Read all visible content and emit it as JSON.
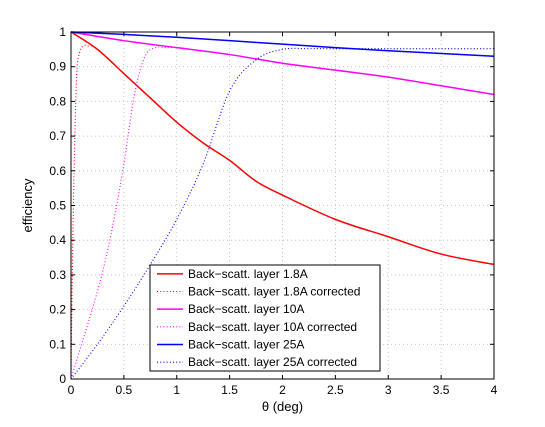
{
  "chart_data": {
    "type": "line",
    "title": "",
    "xlabel": "θ (deg)",
    "ylabel": "efficiency",
    "xlim": [
      0,
      4
    ],
    "ylim": [
      0,
      1
    ],
    "xticks": [
      0,
      0.5,
      1,
      1.5,
      2,
      2.5,
      3,
      3.5,
      4
    ],
    "xtick_labels": [
      "0",
      "0.5",
      "1",
      "1.5",
      "2",
      "2.5",
      "3",
      "3.5",
      "4"
    ],
    "yticks": [
      0,
      0.1,
      0.2,
      0.3,
      0.4,
      0.5,
      0.6,
      0.7,
      0.8,
      0.9,
      1
    ],
    "ytick_labels": [
      "0",
      "0.1",
      "0.2",
      "0.3",
      "0.4",
      "0.5",
      "0.6",
      "0.7",
      "0.8",
      "0.9",
      "1"
    ],
    "grid": true,
    "legend_position": "bottom-center",
    "series": [
      {
        "name": "Back−scatt. layer 1.8A",
        "color": "#ff0000",
        "style": "solid",
        "x": [
          0,
          0.25,
          0.5,
          0.75,
          1.0,
          1.25,
          1.5,
          1.75,
          2.0,
          2.5,
          3.0,
          3.5,
          4.0
        ],
        "y": [
          1.0,
          0.95,
          0.88,
          0.81,
          0.74,
          0.68,
          0.63,
          0.57,
          0.53,
          0.46,
          0.41,
          0.36,
          0.33
        ]
      },
      {
        "name": "Back−scatt. layer 1.8A corrected",
        "color": "#ff0000",
        "style": "dotted",
        "x": [
          0,
          0.02,
          0.05,
          0.08,
          0.12,
          0.16,
          0.2
        ],
        "y": [
          0.0,
          0.45,
          0.85,
          0.94,
          0.96,
          0.96,
          0.96
        ]
      },
      {
        "name": "Back−scatt. layer 10A",
        "color": "#ff00ff",
        "style": "solid",
        "x": [
          0,
          0.5,
          1.0,
          1.5,
          2.0,
          2.5,
          3.0,
          3.5,
          4.0
        ],
        "y": [
          1.0,
          0.975,
          0.955,
          0.935,
          0.91,
          0.89,
          0.87,
          0.845,
          0.82
        ]
      },
      {
        "name": "Back−scatt. layer 10A corrected",
        "color": "#ff00ff",
        "style": "dotted",
        "x": [
          0,
          0.1,
          0.2,
          0.3,
          0.4,
          0.5,
          0.6,
          0.7,
          0.8,
          0.9,
          1.0
        ],
        "y": [
          0.0,
          0.1,
          0.2,
          0.31,
          0.45,
          0.62,
          0.82,
          0.93,
          0.955,
          0.955,
          0.955
        ]
      },
      {
        "name": "Back−scatt. layer 25A",
        "color": "#0000ff",
        "style": "solid",
        "x": [
          0,
          0.5,
          1.0,
          1.5,
          2.0,
          2.5,
          3.0,
          3.5,
          4.0
        ],
        "y": [
          1.0,
          0.993,
          0.985,
          0.975,
          0.965,
          0.955,
          0.946,
          0.938,
          0.93
        ]
      },
      {
        "name": "Back−scatt. layer 25A corrected",
        "color": "#0000ff",
        "style": "dotted",
        "x": [
          0,
          0.25,
          0.5,
          0.75,
          1.0,
          1.25,
          1.5,
          1.75,
          2.0,
          2.25,
          2.5,
          3.0,
          3.5,
          4.0
        ],
        "y": [
          0.0,
          0.1,
          0.21,
          0.33,
          0.46,
          0.62,
          0.83,
          0.92,
          0.95,
          0.952,
          0.952,
          0.952,
          0.952,
          0.952
        ]
      }
    ]
  }
}
